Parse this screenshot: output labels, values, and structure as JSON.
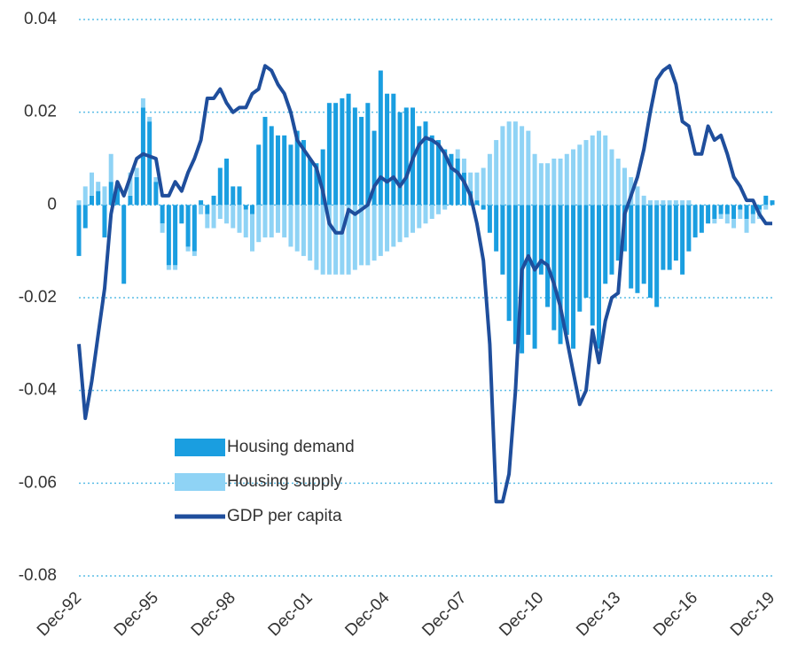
{
  "chart_data": {
    "type": "bar",
    "categories": [
      "Dec-92",
      null,
      null,
      null,
      null,
      null,
      null,
      null,
      null,
      null,
      null,
      null,
      "Dec-95",
      null,
      null,
      null,
      null,
      null,
      null,
      null,
      null,
      null,
      null,
      null,
      "Dec-98",
      null,
      null,
      null,
      null,
      null,
      null,
      null,
      null,
      null,
      null,
      null,
      "Dec-01",
      null,
      null,
      null,
      null,
      null,
      null,
      null,
      null,
      null,
      null,
      null,
      "Dec-04",
      null,
      null,
      null,
      null,
      null,
      null,
      null,
      null,
      null,
      null,
      null,
      "Dec-07",
      null,
      null,
      null,
      null,
      null,
      null,
      null,
      null,
      null,
      null,
      null,
      "Dec-10",
      null,
      null,
      null,
      null,
      null,
      null,
      null,
      null,
      null,
      null,
      null,
      "Dec-13",
      null,
      null,
      null,
      null,
      null,
      null,
      null,
      null,
      null,
      null,
      null,
      "Dec-16",
      null,
      null,
      null,
      null,
      null,
      null,
      null,
      null,
      null,
      null,
      null,
      "Dec-19"
    ],
    "series": [
      {
        "name": "Housing demand",
        "color": "#1a9ee0",
        "mark": "bar",
        "values": [
          -0.011,
          -0.005,
          0.002,
          0.003,
          -0.007,
          0.005,
          0.004,
          -0.017,
          0.002,
          0.006,
          0.021,
          0.018,
          0.005,
          -0.004,
          -0.013,
          -0.013,
          -0.004,
          -0.009,
          -0.01,
          0.001,
          -0.002,
          0.002,
          0.008,
          0.01,
          0.004,
          0.004,
          -0.001,
          -0.002,
          0.013,
          0.019,
          0.017,
          0.015,
          0.015,
          0.013,
          0.016,
          0.014,
          0.01,
          0.009,
          0.012,
          0.022,
          0.022,
          0.023,
          0.024,
          0.021,
          0.019,
          0.022,
          0.016,
          0.029,
          0.024,
          0.024,
          0.02,
          0.021,
          0.021,
          0.017,
          0.018,
          0.015,
          0.014,
          0.012,
          0.011,
          0.01,
          0.007,
          0.003,
          0.001,
          -0.001,
          -0.006,
          -0.01,
          -0.015,
          -0.025,
          -0.03,
          -0.032,
          -0.028,
          -0.031,
          -0.015,
          -0.022,
          -0.027,
          -0.03,
          -0.028,
          -0.031,
          -0.023,
          -0.02,
          -0.026,
          -0.031,
          -0.017,
          -0.015,
          -0.012,
          -0.01,
          -0.018,
          -0.019,
          -0.017,
          -0.02,
          -0.022,
          -0.014,
          -0.014,
          -0.012,
          -0.015,
          -0.01,
          -0.007,
          -0.006,
          -0.004,
          -0.003,
          -0.002,
          -0.002,
          -0.003,
          -0.001,
          -0.003,
          -0.002,
          -0.001,
          0.002,
          0.001
        ]
      },
      {
        "name": "Housing supply",
        "color": "#8fd3f5",
        "mark": "bar",
        "values": [
          0.001,
          0.004,
          0.005,
          0.002,
          0.004,
          0.006,
          0.001,
          0.0,
          0.005,
          0.002,
          0.002,
          0.001,
          0.001,
          -0.002,
          -0.001,
          -0.001,
          0.0,
          -0.001,
          -0.001,
          -0.002,
          -0.003,
          -0.005,
          -0.003,
          -0.004,
          -0.005,
          -0.006,
          -0.006,
          -0.008,
          -0.008,
          -0.007,
          -0.007,
          -0.006,
          -0.007,
          -0.009,
          -0.01,
          -0.011,
          -0.012,
          -0.014,
          -0.015,
          -0.015,
          -0.015,
          -0.015,
          -0.015,
          -0.014,
          -0.013,
          -0.013,
          -0.012,
          -0.011,
          -0.01,
          -0.009,
          -0.008,
          -0.007,
          -0.006,
          -0.005,
          -0.004,
          -0.003,
          -0.002,
          -0.001,
          0.0,
          0.002,
          0.003,
          0.004,
          0.006,
          0.008,
          0.011,
          0.014,
          0.017,
          0.018,
          0.018,
          0.017,
          0.016,
          0.011,
          0.009,
          0.009,
          0.01,
          0.01,
          0.011,
          0.012,
          0.013,
          0.014,
          0.015,
          0.016,
          0.015,
          0.012,
          0.01,
          0.008,
          0.006,
          0.004,
          0.002,
          0.001,
          0.001,
          0.001,
          0.001,
          0.001,
          0.001,
          0.001,
          0.0,
          0.0,
          0.0,
          -0.001,
          -0.001,
          -0.002,
          -0.002,
          -0.002,
          -0.003,
          -0.002,
          -0.002,
          -0.001,
          0.0
        ]
      },
      {
        "name": "GDP per capita",
        "color": "#1f4e9c",
        "mark": "line",
        "values": [
          -0.03,
          -0.046,
          -0.038,
          -0.028,
          -0.018,
          -0.002,
          0.005,
          0.002,
          0.006,
          0.01,
          0.011,
          0.0105,
          0.01,
          0.002,
          0.002,
          0.005,
          0.003,
          0.007,
          0.01,
          0.014,
          0.023,
          0.023,
          0.025,
          0.022,
          0.02,
          0.021,
          0.021,
          0.024,
          0.025,
          0.03,
          0.029,
          0.026,
          0.024,
          0.02,
          0.014,
          0.012,
          0.01,
          0.008,
          0.003,
          -0.004,
          -0.006,
          -0.006,
          -0.001,
          -0.002,
          -0.001,
          0.0,
          0.004,
          0.006,
          0.005,
          0.006,
          0.004,
          0.006,
          0.01,
          0.013,
          0.0145,
          0.014,
          0.013,
          0.011,
          0.008,
          0.007,
          0.005,
          0.002,
          -0.004,
          -0.012,
          -0.03,
          -0.064,
          -0.064,
          -0.058,
          -0.04,
          -0.014,
          -0.011,
          -0.014,
          -0.012,
          -0.013,
          -0.017,
          -0.022,
          -0.029,
          -0.036,
          -0.043,
          -0.04,
          -0.027,
          -0.034,
          -0.025,
          -0.02,
          -0.019,
          -0.002,
          0.002,
          0.006,
          0.012,
          0.02,
          0.027,
          0.029,
          0.03,
          0.026,
          0.018,
          0.017,
          0.011,
          0.011,
          0.017,
          0.014,
          0.015,
          0.011,
          0.006,
          0.004,
          0.001,
          0.001,
          -0.002,
          -0.004,
          -0.004
        ]
      }
    ],
    "ylim": [
      -0.08,
      0.04
    ],
    "yticks": [
      -0.08,
      -0.06,
      -0.04,
      -0.02,
      0,
      0.02,
      0.04
    ],
    "grid": true,
    "legend": "lower left"
  }
}
